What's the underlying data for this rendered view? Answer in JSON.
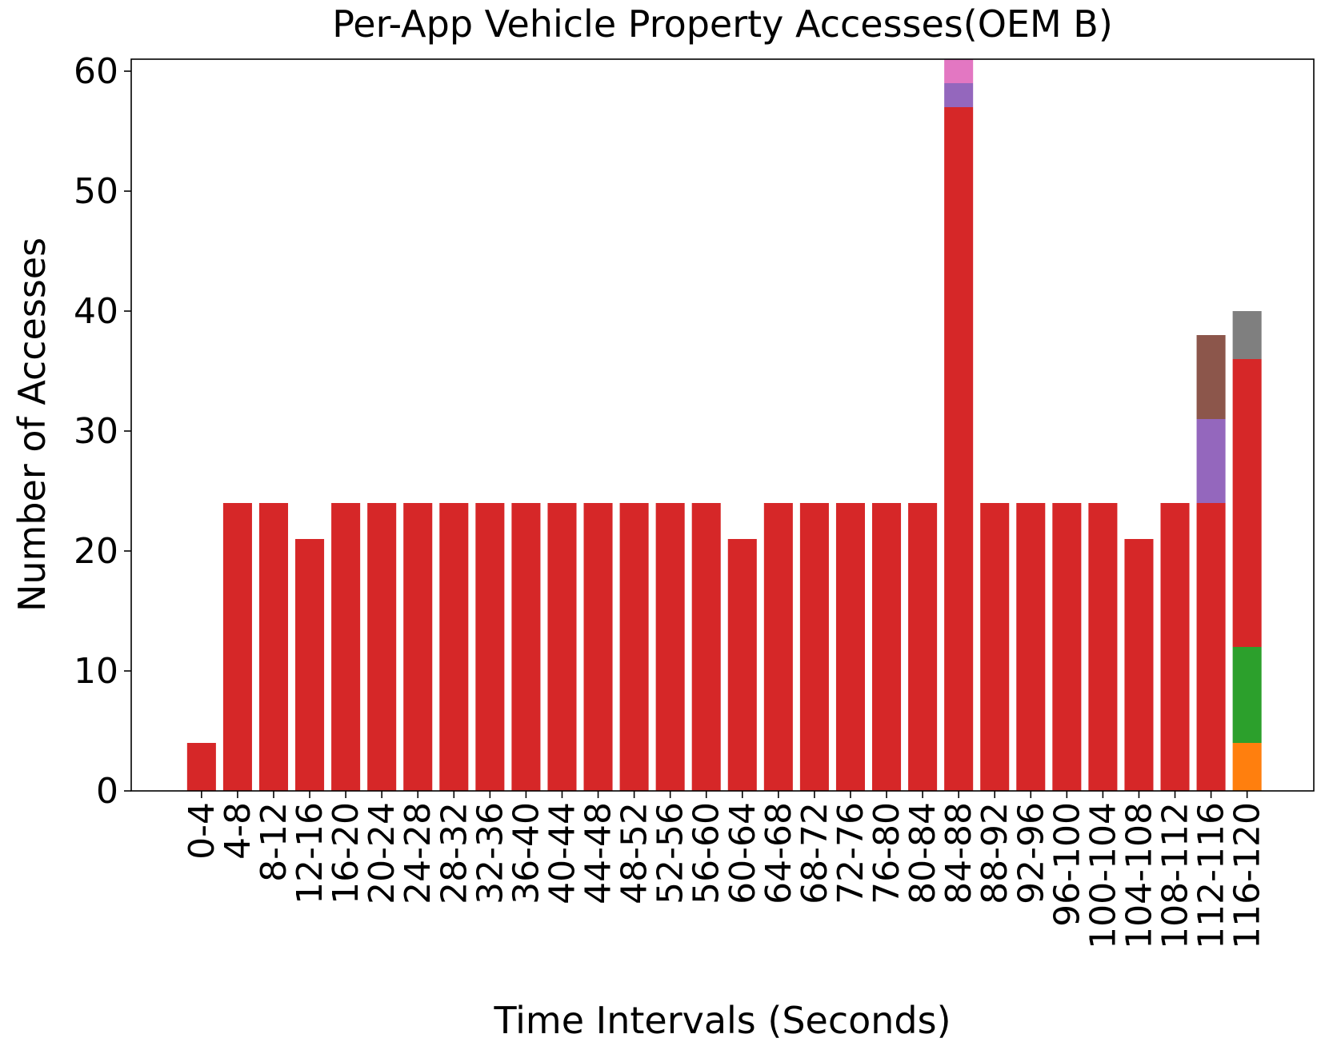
{
  "chart_data": {
    "type": "stacked_bar",
    "title": "Per-App Vehicle Property Accesses(OEM B)",
    "x_label": "Time Intervals (Seconds)",
    "y_label": "Number of Accesses",
    "categories": [
      "0-4",
      "4-8",
      "8-12",
      "12-16",
      "16-20",
      "20-24",
      "24-28",
      "28-32",
      "32-36",
      "36-40",
      "40-44",
      "44-48",
      "48-52",
      "52-56",
      "56-60",
      "60-64",
      "64-68",
      "68-72",
      "72-76",
      "76-80",
      "80-84",
      "84-88",
      "88-92",
      "92-96",
      "96-100",
      "100-104",
      "104-108",
      "108-112",
      "112-116",
      "116-120"
    ],
    "series": [
      {
        "color": "#ff7f0e",
        "values": [
          0,
          0,
          0,
          0,
          0,
          0,
          0,
          0,
          0,
          0,
          0,
          0,
          0,
          0,
          0,
          0,
          0,
          0,
          0,
          0,
          0,
          0,
          0,
          0,
          0,
          0,
          0,
          0,
          0,
          4
        ]
      },
      {
        "color": "#2ca02c",
        "values": [
          0,
          0,
          0,
          0,
          0,
          0,
          0,
          0,
          0,
          0,
          0,
          0,
          0,
          0,
          0,
          0,
          0,
          0,
          0,
          0,
          0,
          0,
          0,
          0,
          0,
          0,
          0,
          0,
          0,
          8
        ]
      },
      {
        "color": "#d62728",
        "values": [
          4,
          24,
          24,
          21,
          24,
          24,
          24,
          24,
          24,
          24,
          24,
          24,
          24,
          24,
          24,
          21,
          24,
          24,
          24,
          24,
          24,
          57,
          24,
          24,
          24,
          24,
          21,
          24,
          24,
          24
        ]
      },
      {
        "color": "#9467bd",
        "values": [
          0,
          0,
          0,
          0,
          0,
          0,
          0,
          0,
          0,
          0,
          0,
          0,
          0,
          0,
          0,
          0,
          0,
          0,
          0,
          0,
          0,
          2,
          0,
          0,
          0,
          0,
          0,
          0,
          7,
          0
        ]
      },
      {
        "color": "#8c564b",
        "values": [
          0,
          0,
          0,
          0,
          0,
          0,
          0,
          0,
          0,
          0,
          0,
          0,
          0,
          0,
          0,
          0,
          0,
          0,
          0,
          0,
          0,
          0,
          0,
          0,
          0,
          0,
          0,
          0,
          7,
          0
        ]
      },
      {
        "color": "#e377c2",
        "values": [
          0,
          0,
          0,
          0,
          0,
          0,
          0,
          0,
          0,
          0,
          0,
          0,
          0,
          0,
          0,
          0,
          0,
          0,
          0,
          0,
          0,
          2,
          0,
          0,
          0,
          0,
          0,
          0,
          0,
          0
        ]
      },
      {
        "color": "#7f7f7f",
        "values": [
          0,
          0,
          0,
          0,
          0,
          0,
          0,
          0,
          0,
          0,
          0,
          0,
          0,
          0,
          0,
          0,
          0,
          0,
          0,
          0,
          0,
          0,
          0,
          0,
          0,
          0,
          0,
          0,
          0,
          4
        ]
      }
    ],
    "ylim": [
      0,
      61
    ],
    "yticks": [
      0,
      10,
      20,
      30,
      40,
      50,
      60
    ],
    "grid": false
  }
}
